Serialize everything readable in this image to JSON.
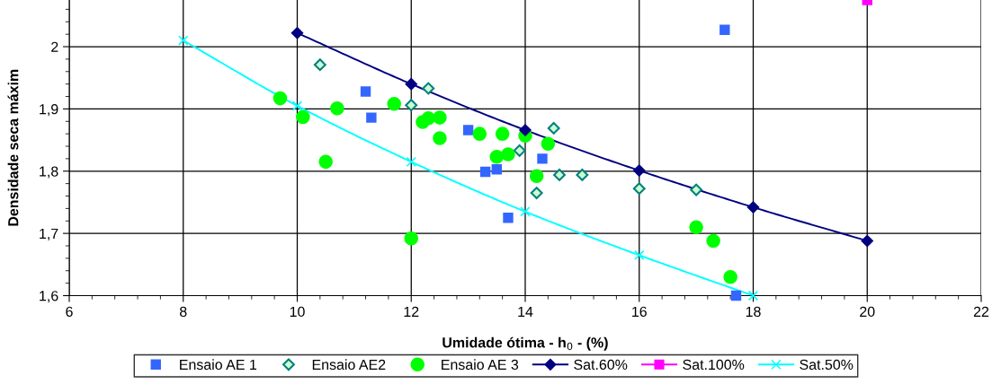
{
  "chart_data": {
    "type": "scatter",
    "xlabel": "Umidade ótima - h$_{0}$ - (%)",
    "ylabel": "Densidade seca máxim",
    "xlim": [
      6,
      22
    ],
    "xticks": [
      6,
      8,
      10,
      12,
      14,
      16,
      18,
      20,
      22
    ],
    "ylim": [
      1.6,
      2.075
    ],
    "yticks": [
      {
        "value": 1.6,
        "label": "1,6"
      },
      {
        "value": 1.7,
        "label": "1,7"
      },
      {
        "value": 1.8,
        "label": "1,8"
      },
      {
        "value": 1.9,
        "label": "1,9"
      },
      {
        "value": 2.0,
        "label": "2"
      }
    ],
    "grid": true,
    "legend": "bottom",
    "series": [
      {
        "name": "Ensaio AE 1",
        "marker": "square",
        "color": "#3366ff",
        "x": [
          11.2,
          11.3,
          13.0,
          13.3,
          13.5,
          13.7,
          14.3,
          17.5,
          17.7
        ],
        "values": [
          1.928,
          1.886,
          1.866,
          1.799,
          1.803,
          1.725,
          1.82,
          2.027,
          1.6
        ]
      },
      {
        "name": "Ensaio AE2",
        "marker": "diamond",
        "color": "#008080",
        "x": [
          10.4,
          12.3,
          12.0,
          14.5,
          13.9,
          14.6,
          15.0,
          14.2,
          16.0,
          17.0
        ],
        "values": [
          1.971,
          1.933,
          1.906,
          1.869,
          1.833,
          1.794,
          1.794,
          1.765,
          1.772,
          1.77
        ]
      },
      {
        "name": "Ensaio AE 3",
        "marker": "circle",
        "color": "#00ff00",
        "x": [
          9.7,
          10.1,
          10.7,
          10.5,
          11.7,
          12.2,
          12.3,
          12.5,
          12.5,
          12.0,
          13.2,
          13.6,
          13.5,
          13.7,
          14.0,
          14.4,
          14.2,
          17.0,
          17.3,
          17.6
        ],
        "values": [
          1.917,
          1.887,
          1.901,
          1.815,
          1.908,
          1.879,
          1.885,
          1.886,
          1.853,
          1.692,
          1.86,
          1.86,
          1.823,
          1.827,
          1.857,
          1.844,
          1.792,
          1.71,
          1.688,
          1.63
        ]
      },
      {
        "name": "Sat.60%",
        "type": "line",
        "marker": "diamond",
        "color": "#000080",
        "x": [
          10,
          12,
          14,
          16,
          18,
          20
        ],
        "values": [
          2.022,
          1.94,
          1.866,
          1.801,
          1.742,
          1.688
        ]
      },
      {
        "name": "Sat.100%",
        "type": "line",
        "marker": "square",
        "color": "#ff00ff",
        "x": [
          20
        ],
        "values": [
          2.075
        ]
      },
      {
        "name": "Sat.50%",
        "type": "line",
        "marker": "cross",
        "color": "#00ffff",
        "x": [
          8,
          10,
          12,
          14,
          16,
          18
        ],
        "values": [
          2.01,
          1.905,
          1.815,
          1.735,
          1.665,
          1.6
        ]
      }
    ]
  }
}
